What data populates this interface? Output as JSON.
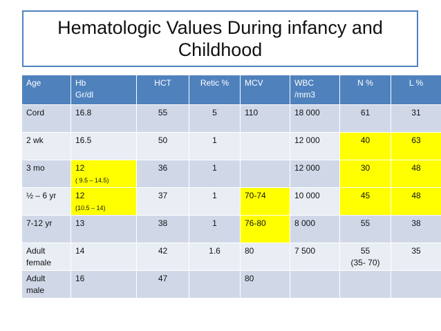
{
  "title": {
    "line1": "Hematologic Values During infancy and",
    "line2": "Childhood"
  },
  "columns": [
    {
      "id": "age",
      "line1": "Age",
      "line2": ""
    },
    {
      "id": "hb",
      "line1": "Hb",
      "line2": "Gr/dl"
    },
    {
      "id": "hct",
      "line1": "HCT",
      "line2": ""
    },
    {
      "id": "retic",
      "line1": "Retic %",
      "line2": ""
    },
    {
      "id": "mcv",
      "line1": "MCV",
      "line2": ""
    },
    {
      "id": "wbc",
      "line1": "WBC",
      "line2": "/mm3"
    },
    {
      "id": "n",
      "line1": "N %",
      "line2": ""
    },
    {
      "id": "l",
      "line1": "L %",
      "line2": ""
    }
  ],
  "rows": [
    {
      "age": "Cord",
      "age2": "",
      "hb": "16.8",
      "hb_range": "",
      "hct": "55",
      "retic": "5",
      "mcv": "110",
      "wbc": "18 000",
      "n": "61",
      "n2": "",
      "l": "31"
    },
    {
      "age": "2 wk",
      "age2": "",
      "hb": "16.5",
      "hb_range": "",
      "hct": "50",
      "retic": "1",
      "mcv": "",
      "wbc": "12 000",
      "n": "40",
      "n2": "",
      "l": "63"
    },
    {
      "age": "3 mo",
      "age2": "",
      "hb": "12",
      "hb_range": "( 9.5 – 14.5)",
      "hct": "36",
      "retic": "1",
      "mcv": "",
      "wbc": "12 000",
      "n": "30",
      "n2": "",
      "l": "48"
    },
    {
      "age": "½  – 6 yr",
      "age2": "",
      "hb": "12",
      "hb_range": "(10.5 – 14)",
      "hct": "37",
      "retic": "1",
      "mcv": "70-74",
      "wbc": "10 000",
      "n": "45",
      "n2": "",
      "l": "48"
    },
    {
      "age": "7-12 yr",
      "age2": "",
      "hb": "13",
      "hb_range": "",
      "hct": "38",
      "retic": "1",
      "mcv": "76-80",
      "wbc": "8 000",
      "n": "55",
      "n2": "",
      "l": "38"
    },
    {
      "age": "Adult",
      "age2": "female",
      "hb": "14",
      "hb_range": "",
      "hct": "42",
      "retic": "1.6",
      "mcv": "80",
      "wbc": "7 500",
      "n": "55",
      "n2": "(35- 70)",
      "l": "35"
    },
    {
      "age": "Adult",
      "age2": "male",
      "hb": "16",
      "hb_range": "",
      "hct": "47",
      "retic": "",
      "mcv": "80",
      "wbc": "",
      "n": "",
      "n2": "",
      "l": ""
    }
  ],
  "colors": {
    "header": "#4f81bd",
    "row_odd": "#d0d8e8",
    "row_even": "#e9edf4",
    "highlight": "#ffff00"
  }
}
